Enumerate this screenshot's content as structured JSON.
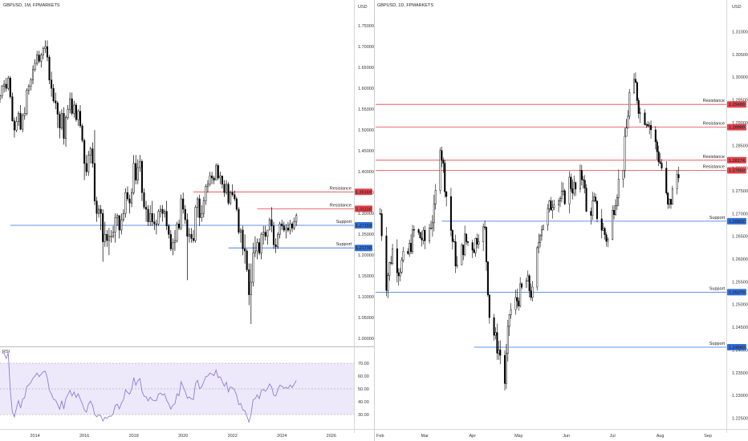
{
  "colors": {
    "background": "#ffffff",
    "candle_up": "#ffffff",
    "candle_down": "#000000",
    "resistance": "#e8414a",
    "support": "#2f6fe0",
    "rsi_line": "#8f7dd4",
    "rsi_band": "#ede9fb"
  },
  "chart_data": [
    {
      "type": "candlestick",
      "title": "GBPUSD, 1M, FPMARKETS",
      "currency_label": "USD",
      "x_ticks": [
        "2014",
        "2016",
        "2018",
        "2020",
        "2022",
        "2024",
        "2026",
        "20"
      ],
      "y_ticks": [
        "1.75000",
        "1.70000",
        "1.65000",
        "1.60000",
        "1.55000",
        "1.50000",
        "1.45000",
        "1.40000",
        "1.35000",
        "1.30000",
        "1.25000",
        "1.20000",
        "1.15000",
        "1.10000",
        "1.05000",
        "1.00000"
      ],
      "ylim": [
        0.985,
        1.785
      ],
      "x_range": [
        "2012-08",
        "2026-12"
      ],
      "first_period": "2012-08",
      "last_period": "2024-08",
      "candles": [
        [
          1.575,
          1.585,
          1.565,
          1.582
        ],
        [
          1.582,
          1.608,
          1.575,
          1.605
        ],
        [
          1.605,
          1.62,
          1.59,
          1.61
        ],
        [
          1.61,
          1.625,
          1.592,
          1.6
        ],
        [
          1.6,
          1.63,
          1.595,
          1.625
        ],
        [
          1.625,
          1.63,
          1.575,
          1.58
        ],
        [
          1.58,
          1.59,
          1.52,
          1.522
        ],
        [
          1.522,
          1.53,
          1.482,
          1.5
        ],
        [
          1.5,
          1.532,
          1.495,
          1.52
        ],
        [
          1.52,
          1.545,
          1.51,
          1.54
        ],
        [
          1.54,
          1.56,
          1.5,
          1.502
        ],
        [
          1.502,
          1.54,
          1.495,
          1.535
        ],
        [
          1.535,
          1.555,
          1.525,
          1.54
        ],
        [
          1.54,
          1.6,
          1.535,
          1.595
        ],
        [
          1.595,
          1.61,
          1.585,
          1.605
        ],
        [
          1.605,
          1.625,
          1.595,
          1.62
        ],
        [
          1.62,
          1.655,
          1.61,
          1.645
        ],
        [
          1.645,
          1.67,
          1.64,
          1.66
        ],
        [
          1.66,
          1.69,
          1.655,
          1.68
        ],
        [
          1.68,
          1.69,
          1.66,
          1.665
        ],
        [
          1.665,
          1.685,
          1.65,
          1.68
        ],
        [
          1.68,
          1.7,
          1.67,
          1.695
        ],
        [
          1.695,
          1.715,
          1.685,
          1.7
        ],
        [
          1.7,
          1.715,
          1.665,
          1.675
        ],
        [
          1.675,
          1.68,
          1.61,
          1.62
        ],
        [
          1.62,
          1.64,
          1.58,
          1.6
        ],
        [
          1.6,
          1.61,
          1.565,
          1.57
        ],
        [
          1.57,
          1.59,
          1.55,
          1.565
        ],
        [
          1.565,
          1.57,
          1.505,
          1.538
        ],
        [
          1.538,
          1.545,
          1.48,
          1.505
        ],
        [
          1.505,
          1.55,
          1.5,
          1.54
        ],
        [
          1.54,
          1.555,
          1.465,
          1.48
        ],
        [
          1.48,
          1.535,
          1.46,
          1.53
        ],
        [
          1.53,
          1.56,
          1.525,
          1.55
        ],
        [
          1.55,
          1.59,
          1.54,
          1.575
        ],
        [
          1.575,
          1.59,
          1.535,
          1.54
        ],
        [
          1.54,
          1.57,
          1.53,
          1.56
        ],
        [
          1.56,
          1.565,
          1.52,
          1.525
        ],
        [
          1.525,
          1.55,
          1.51,
          1.545
        ],
        [
          1.545,
          1.56,
          1.505,
          1.51
        ],
        [
          1.51,
          1.515,
          1.47,
          1.475
        ],
        [
          1.475,
          1.48,
          1.38,
          1.42
        ],
        [
          1.42,
          1.44,
          1.39,
          1.4
        ],
        [
          1.4,
          1.45,
          1.39,
          1.44
        ],
        [
          1.44,
          1.46,
          1.42,
          1.455
        ],
        [
          1.455,
          1.47,
          1.41,
          1.42
        ],
        [
          1.42,
          1.5,
          1.32,
          1.33
        ],
        [
          1.33,
          1.34,
          1.28,
          1.3
        ],
        [
          1.3,
          1.32,
          1.29,
          1.31
        ],
        [
          1.31,
          1.32,
          1.26,
          1.3
        ],
        [
          1.3,
          1.31,
          1.184,
          1.232
        ],
        [
          1.232,
          1.28,
          1.22,
          1.25
        ],
        [
          1.25,
          1.26,
          1.22,
          1.235
        ],
        [
          1.235,
          1.265,
          1.2,
          1.245
        ],
        [
          1.245,
          1.26,
          1.23,
          1.245
        ],
        [
          1.245,
          1.27,
          1.24,
          1.255
        ],
        [
          1.255,
          1.3,
          1.23,
          1.29
        ],
        [
          1.29,
          1.3,
          1.27,
          1.295
        ],
        [
          1.295,
          1.295,
          1.24,
          1.26
        ],
        [
          1.26,
          1.3,
          1.25,
          1.285
        ],
        [
          1.285,
          1.31,
          1.28,
          1.3
        ],
        [
          1.3,
          1.36,
          1.29,
          1.35
        ],
        [
          1.35,
          1.365,
          1.33,
          1.335
        ],
        [
          1.335,
          1.345,
          1.3,
          1.325
        ],
        [
          1.325,
          1.36,
          1.315,
          1.35
        ],
        [
          1.35,
          1.44,
          1.345,
          1.42
        ],
        [
          1.42,
          1.44,
          1.37,
          1.38
        ],
        [
          1.38,
          1.43,
          1.37,
          1.41
        ],
        [
          1.41,
          1.44,
          1.4,
          1.425
        ],
        [
          1.425,
          1.43,
          1.33,
          1.35
        ],
        [
          1.35,
          1.36,
          1.31,
          1.315
        ],
        [
          1.315,
          1.33,
          1.28,
          1.31
        ],
        [
          1.31,
          1.32,
          1.27,
          1.28
        ],
        [
          1.28,
          1.32,
          1.27,
          1.3
        ],
        [
          1.3,
          1.33,
          1.27,
          1.28
        ],
        [
          1.28,
          1.3,
          1.26,
          1.275
        ],
        [
          1.275,
          1.285,
          1.25,
          1.275
        ],
        [
          1.275,
          1.31,
          1.27,
          1.305
        ],
        [
          1.305,
          1.32,
          1.29,
          1.31
        ],
        [
          1.31,
          1.32,
          1.28,
          1.3
        ],
        [
          1.3,
          1.31,
          1.29,
          1.305
        ],
        [
          1.305,
          1.33,
          1.26,
          1.27
        ],
        [
          1.27,
          1.275,
          1.24,
          1.25
        ],
        [
          1.25,
          1.26,
          1.21,
          1.215
        ],
        [
          1.215,
          1.24,
          1.2,
          1.23
        ],
        [
          1.23,
          1.26,
          1.21,
          1.235
        ],
        [
          1.235,
          1.28,
          1.23,
          1.275
        ],
        [
          1.275,
          1.285,
          1.26,
          1.265
        ],
        [
          1.265,
          1.345,
          1.26,
          1.335
        ],
        [
          1.335,
          1.35,
          1.3,
          1.31
        ],
        [
          1.31,
          1.32,
          1.275,
          1.285
        ],
        [
          1.285,
          1.3,
          1.14,
          1.245
        ],
        [
          1.245,
          1.265,
          1.23,
          1.25
        ],
        [
          1.25,
          1.265,
          1.23,
          1.24
        ],
        [
          1.24,
          1.26,
          1.23,
          1.235
        ],
        [
          1.235,
          1.32,
          1.23,
          1.315
        ],
        [
          1.315,
          1.34,
          1.29,
          1.335
        ],
        [
          1.335,
          1.345,
          1.27,
          1.29
        ],
        [
          1.29,
          1.32,
          1.28,
          1.3
        ],
        [
          1.3,
          1.34,
          1.29,
          1.33
        ],
        [
          1.33,
          1.37,
          1.32,
          1.365
        ],
        [
          1.365,
          1.38,
          1.35,
          1.37
        ],
        [
          1.37,
          1.4,
          1.365,
          1.39
        ],
        [
          1.39,
          1.4,
          1.37,
          1.385
        ],
        [
          1.385,
          1.39,
          1.37,
          1.38
        ],
        [
          1.38,
          1.42,
          1.38,
          1.415
        ],
        [
          1.415,
          1.42,
          1.38,
          1.385
        ],
        [
          1.385,
          1.4,
          1.37,
          1.39
        ],
        [
          1.39,
          1.39,
          1.36,
          1.37
        ],
        [
          1.37,
          1.38,
          1.34,
          1.35
        ],
        [
          1.35,
          1.38,
          1.345,
          1.37
        ],
        [
          1.37,
          1.375,
          1.32,
          1.325
        ],
        [
          1.325,
          1.355,
          1.32,
          1.35
        ],
        [
          1.35,
          1.37,
          1.34,
          1.345
        ],
        [
          1.345,
          1.355,
          1.33,
          1.335
        ],
        [
          1.335,
          1.34,
          1.305,
          1.31
        ],
        [
          1.31,
          1.315,
          1.25,
          1.255
        ],
        [
          1.255,
          1.265,
          1.23,
          1.26
        ],
        [
          1.26,
          1.27,
          1.2,
          1.215
        ],
        [
          1.215,
          1.25,
          1.18,
          1.21
        ],
        [
          1.21,
          1.215,
          1.16,
          1.165
        ],
        [
          1.165,
          1.18,
          1.08,
          1.105
        ],
        [
          1.105,
          1.18,
          1.035,
          1.135
        ],
        [
          1.135,
          1.23,
          1.125,
          1.205
        ],
        [
          1.205,
          1.245,
          1.195,
          1.21
        ],
        [
          1.21,
          1.24,
          1.19,
          1.23
        ],
        [
          1.23,
          1.24,
          1.2,
          1.205
        ],
        [
          1.205,
          1.255,
          1.19,
          1.25
        ],
        [
          1.25,
          1.27,
          1.225,
          1.255
        ],
        [
          1.255,
          1.27,
          1.235,
          1.245
        ],
        [
          1.245,
          1.26,
          1.225,
          1.26
        ],
        [
          1.26,
          1.29,
          1.26,
          1.285
        ],
        [
          1.285,
          1.315,
          1.255,
          1.27
        ],
        [
          1.27,
          1.28,
          1.215,
          1.225
        ],
        [
          1.225,
          1.24,
          1.205,
          1.22
        ],
        [
          1.22,
          1.255,
          1.215,
          1.25
        ],
        [
          1.25,
          1.28,
          1.24,
          1.275
        ],
        [
          1.275,
          1.285,
          1.26,
          1.27
        ],
        [
          1.27,
          1.28,
          1.255,
          1.26
        ],
        [
          1.26,
          1.275,
          1.24,
          1.265
        ],
        [
          1.265,
          1.28,
          1.255,
          1.26
        ],
        [
          1.26,
          1.285,
          1.25,
          1.275
        ],
        [
          1.275,
          1.28,
          1.255,
          1.265
        ],
        [
          1.265,
          1.29,
          1.26,
          1.28
        ],
        [
          1.28,
          1.3,
          1.27,
          1.295
        ]
      ],
      "levels": [
        {
          "kind": "resistance",
          "label": "Resistance",
          "price": 1.35169,
          "price_label": "1.35169",
          "from_period": "2020-06"
        },
        {
          "kind": "resistance",
          "label": "Resistance",
          "price": 1.3111,
          "price_label": "1.31110",
          "from_period": "2023-01"
        },
        {
          "kind": "support",
          "label": "Support",
          "price": 1.2715,
          "price_label": "1.27150",
          "from_period": "2013-01"
        },
        {
          "kind": "support",
          "label": "Support",
          "price": 1.2173,
          "price_label": "1.21730",
          "from_period": "2021-11"
        }
      ],
      "rsi": {
        "label": "RSI",
        "ylim": [
          20,
          80
        ],
        "band": [
          30,
          70
        ],
        "midline": 50,
        "y_ticks": [
          "70.00",
          "60.00",
          "50.00",
          "40.00",
          "30.00"
        ]
      }
    },
    {
      "type": "candlestick",
      "title": "GBPUSD, 1D, FPMARKETS",
      "currency_label": "USD",
      "x_ticks": [
        "Feb",
        "Mar",
        "Apr",
        "May",
        "Jun",
        "Jul",
        "Aug",
        "Sep"
      ],
      "y_ticks": [
        "1.31000",
        "1.30500",
        "1.30000",
        "1.29500",
        "1.29000",
        "1.28500",
        "1.28000",
        "1.27500",
        "1.27000",
        "1.26500",
        "1.26000",
        "1.25500",
        "1.25000",
        "1.24500",
        "1.24000",
        "1.23500",
        "1.23000",
        "1.22500"
      ],
      "ylim": [
        1.2235,
        1.3145
      ],
      "x_range": [
        "2024-01-29",
        "2024-09-13"
      ],
      "candle_dates": [
        "2024-02-01",
        "2024-08-13"
      ],
      "levels": [
        {
          "kind": "resistance",
          "label": "Resistance",
          "price": 1.294,
          "price_label": "1.29400",
          "from_date": "2024-01-29"
        },
        {
          "kind": "resistance",
          "label": "Resistance",
          "price": 1.289,
          "price_label": "1.28900",
          "from_date": "2024-01-29"
        },
        {
          "kind": "resistance",
          "label": "Resistance",
          "price": 1.28174,
          "price_label": "1.28174",
          "from_date": "2024-01-29"
        },
        {
          "kind": "resistance",
          "label": "Resistance",
          "price": 1.2795,
          "price_label": "1.27950",
          "from_date": "2024-01-29"
        },
        {
          "kind": "support",
          "label": "Support",
          "price": 1.26832,
          "price_label": "1.26832",
          "from_date": "2024-03-12"
        },
        {
          "kind": "support",
          "label": "Support",
          "price": 1.2527,
          "price_label": "1.25270",
          "from_date": "2024-01-29"
        },
        {
          "kind": "support",
          "label": "Support",
          "price": 1.2406,
          "price_label": "1.24060",
          "from_date": "2024-04-02"
        }
      ],
      "path": [
        [
          "2024-02-01",
          1.27
        ],
        [
          "2024-02-05",
          1.255
        ],
        [
          "2024-02-09",
          1.262
        ],
        [
          "2024-02-13",
          1.258
        ],
        [
          "2024-02-19",
          1.261
        ],
        [
          "2024-02-23",
          1.266
        ],
        [
          "2024-03-01",
          1.264
        ],
        [
          "2024-03-07",
          1.27
        ],
        [
          "2024-03-11",
          1.286
        ],
        [
          "2024-03-15",
          1.274
        ],
        [
          "2024-03-19",
          1.264
        ],
        [
          "2024-03-22",
          1.258
        ],
        [
          "2024-03-27",
          1.264
        ],
        [
          "2024-04-02",
          1.263
        ],
        [
          "2024-04-05",
          1.266
        ],
        [
          "2024-04-09",
          1.266
        ],
        [
          "2024-04-12",
          1.248
        ],
        [
          "2024-04-16",
          1.242
        ],
        [
          "2024-04-19",
          1.239
        ],
        [
          "2024-04-22",
          1.233
        ],
        [
          "2024-04-25",
          1.248
        ],
        [
          "2024-04-30",
          1.251
        ],
        [
          "2024-05-06",
          1.255
        ],
        [
          "2024-05-10",
          1.252
        ],
        [
          "2024-05-15",
          1.267
        ],
        [
          "2024-05-20",
          1.27
        ],
        [
          "2024-05-24",
          1.274
        ],
        [
          "2024-05-30",
          1.273
        ],
        [
          "2024-06-03",
          1.277
        ],
        [
          "2024-06-07",
          1.275
        ],
        [
          "2024-06-12",
          1.279
        ],
        [
          "2024-06-14",
          1.27
        ],
        [
          "2024-06-19",
          1.272
        ],
        [
          "2024-06-24",
          1.267
        ],
        [
          "2024-06-28",
          1.264
        ],
        [
          "2024-07-03",
          1.274
        ],
        [
          "2024-07-08",
          1.281
        ],
        [
          "2024-07-12",
          1.296
        ],
        [
          "2024-07-16",
          1.298
        ],
        [
          "2024-07-19",
          1.292
        ],
        [
          "2024-07-24",
          1.291
        ],
        [
          "2024-07-29",
          1.285
        ],
        [
          "2024-08-02",
          1.28
        ],
        [
          "2024-08-06",
          1.271
        ],
        [
          "2024-08-08",
          1.273
        ],
        [
          "2024-08-13",
          1.28
        ]
      ]
    }
  ]
}
